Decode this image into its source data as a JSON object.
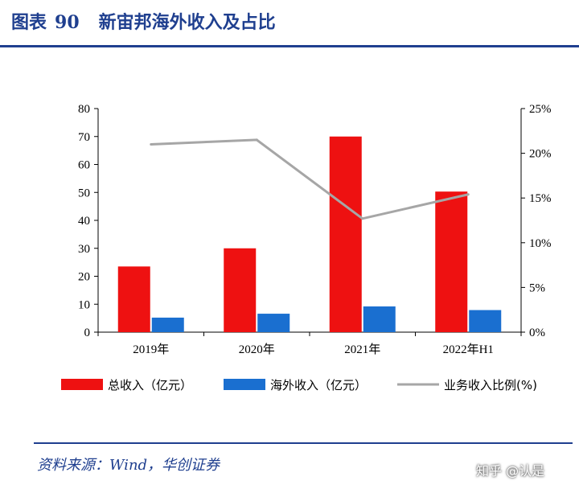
{
  "header": {
    "figure_label": "图表",
    "figure_number": "90",
    "title": "新宙邦海外收入及占比"
  },
  "source": "资料来源：Wind，华创证券",
  "watermark": "知乎 @认是",
  "colors": {
    "title": "#1f3f8f",
    "total_revenue": "#ee1111",
    "overseas_revenue": "#1a6fd0",
    "ratio_line": "#a6a6a6"
  },
  "chart_data": {
    "type": "bar",
    "categories": [
      "2019年",
      "2020年",
      "2021年",
      "2022年H1"
    ],
    "series": [
      {
        "name": "总收入（亿元）",
        "kind": "bar",
        "axis": "left",
        "values": [
          23.5,
          30,
          70,
          50.3
        ]
      },
      {
        "name": "海外收入（亿元）",
        "kind": "bar",
        "axis": "left",
        "values": [
          5.2,
          6.6,
          9.2,
          7.9
        ]
      },
      {
        "name": "业务收入比例(%)",
        "kind": "line",
        "axis": "right",
        "values": [
          21,
          21.5,
          12.7,
          15.4
        ]
      }
    ],
    "y_left": {
      "min": 0,
      "max": 80,
      "ticks": [
        0,
        10,
        20,
        30,
        40,
        50,
        60,
        70,
        80
      ]
    },
    "y_right": {
      "min": 0,
      "max": 25,
      "ticks": [
        "0%",
        "5%",
        "10%",
        "15%",
        "20%",
        "25%"
      ]
    },
    "legend_position": "bottom",
    "grid": false
  }
}
